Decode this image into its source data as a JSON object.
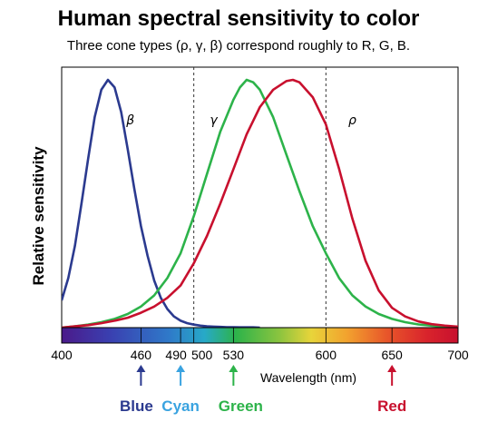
{
  "chart_data": {
    "type": "line",
    "title": "Human spectral sensitivity to color",
    "subtitle": "Three cone types (ρ, γ, β) correspond roughly to R, G, B.",
    "ylabel": "Relative sensitivity",
    "xlabel": "Wavelength (nm)",
    "xlim": [
      400,
      700
    ],
    "ylim": [
      0,
      1
    ],
    "x_ticks": [
      "400",
      "460",
      "490",
      "500",
      "530",
      "600",
      "650",
      "700"
    ],
    "x_tick_values": [
      400,
      460,
      490,
      500,
      530,
      600,
      650,
      700
    ],
    "grid": false,
    "colorbar": "visible spectrum 400–700 nm",
    "dashed_lines_at": [
      500,
      600
    ],
    "series": [
      {
        "name": "β",
        "color": "#2b3a8f",
        "x": [
          400,
          405,
          410,
          415,
          420,
          425,
          430,
          435,
          440,
          445,
          450,
          455,
          460,
          465,
          470,
          475,
          480,
          485,
          490,
          495,
          500,
          505,
          510,
          515,
          520,
          525,
          530,
          535,
          540,
          545,
          550
        ],
        "y": [
          0.11,
          0.2,
          0.33,
          0.5,
          0.68,
          0.85,
          0.96,
          1.0,
          0.97,
          0.87,
          0.72,
          0.56,
          0.41,
          0.29,
          0.19,
          0.12,
          0.075,
          0.045,
          0.028,
          0.018,
          0.012,
          0.008,
          0.005,
          0.004,
          0.003,
          0.002,
          0.002,
          0.001,
          0.001,
          0.001,
          0.0
        ]
      },
      {
        "name": "γ",
        "color": "#2db34a",
        "x": [
          400,
          410,
          420,
          430,
          440,
          450,
          460,
          470,
          480,
          490,
          500,
          510,
          520,
          530,
          535,
          540,
          545,
          550,
          560,
          570,
          580,
          590,
          600,
          610,
          620,
          630,
          640,
          650,
          660,
          670,
          680,
          690,
          700
        ],
        "y": [
          0.0,
          0.005,
          0.012,
          0.022,
          0.035,
          0.055,
          0.085,
          0.13,
          0.2,
          0.3,
          0.45,
          0.62,
          0.79,
          0.92,
          0.97,
          1.0,
          0.99,
          0.96,
          0.85,
          0.7,
          0.55,
          0.41,
          0.3,
          0.2,
          0.13,
          0.085,
          0.055,
          0.035,
          0.022,
          0.013,
          0.008,
          0.004,
          0.002
        ]
      },
      {
        "name": "ρ",
        "color": "#c8102e",
        "x": [
          400,
          410,
          420,
          430,
          440,
          450,
          460,
          470,
          480,
          490,
          500,
          510,
          520,
          530,
          540,
          550,
          560,
          570,
          575,
          580,
          590,
          600,
          610,
          620,
          630,
          640,
          650,
          660,
          670,
          680,
          690,
          700
        ],
        "y": [
          0.0,
          0.005,
          0.01,
          0.018,
          0.028,
          0.04,
          0.06,
          0.085,
          0.12,
          0.17,
          0.26,
          0.37,
          0.5,
          0.64,
          0.78,
          0.89,
          0.96,
          0.995,
          1.0,
          0.99,
          0.93,
          0.82,
          0.64,
          0.44,
          0.27,
          0.15,
          0.08,
          0.045,
          0.025,
          0.014,
          0.008,
          0.004
        ]
      }
    ],
    "markers": [
      {
        "label": "Blue",
        "x": 460,
        "color": "#2b3a8f"
      },
      {
        "label": "Cyan",
        "x": 490,
        "color": "#3aa3e0"
      },
      {
        "label": "Green",
        "x": 530,
        "color": "#2db34a"
      },
      {
        "label": "Red",
        "x": 650,
        "color": "#c8102e"
      }
    ]
  }
}
